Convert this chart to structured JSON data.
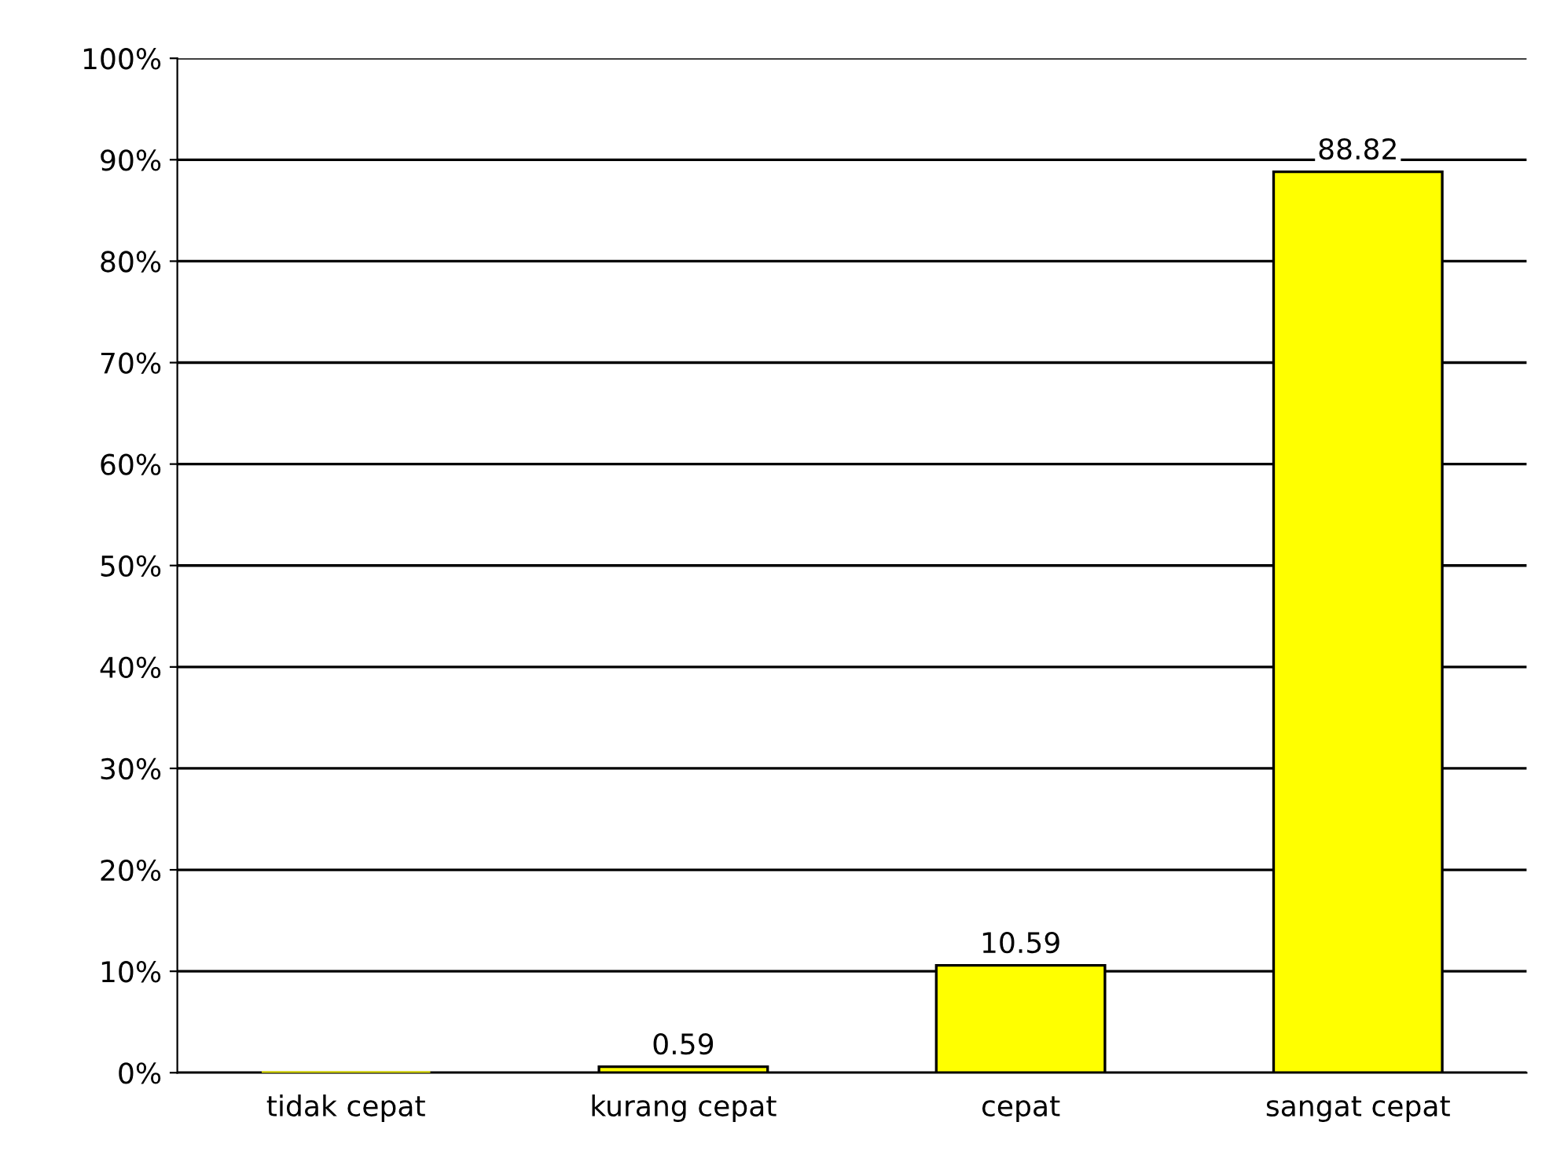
{
  "chart_data": {
    "type": "bar",
    "categories": [
      "tidak cepat",
      "kurang cepat",
      "cepat",
      "sangat cepat"
    ],
    "values": [
      0,
      0.59,
      10.59,
      88.82
    ],
    "value_labels": [
      null,
      "0.59",
      "10.59",
      "88.82"
    ],
    "color": "#ffff00",
    "ylim": [
      0,
      100
    ],
    "yticks": [
      {
        "value": 0,
        "label": "0%"
      },
      {
        "value": 10,
        "label": "10%"
      },
      {
        "value": 20,
        "label": "20%"
      },
      {
        "value": 30,
        "label": "30%"
      },
      {
        "value": 40,
        "label": "40%"
      },
      {
        "value": 50,
        "label": "50%"
      },
      {
        "value": 60,
        "label": "60%"
      },
      {
        "value": 70,
        "label": "70%"
      },
      {
        "value": 80,
        "label": "80%"
      },
      {
        "value": 90,
        "label": "90%"
      },
      {
        "value": 100,
        "label": "100%"
      }
    ],
    "grid": "y",
    "legend": false
  }
}
